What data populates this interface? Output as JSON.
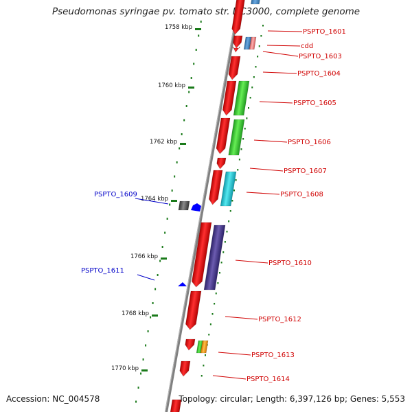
{
  "title": "Pseudomonas syringae pv. tomato str. DC3000, complete genome",
  "footer": {
    "accession": "Accession: NC_004578",
    "topology": "Topology: circular; Length: 6,397,126 bp; Genes: 5,553"
  },
  "colors": {
    "forward_red": "#e80000",
    "label_red": "#d00000",
    "label_blue": "#0000c8",
    "tick_green": "#1a7a1a",
    "backbone_gray": "#808080",
    "cog_green": "#33cc33",
    "cog_cyan": "#22c8d8",
    "cog_purple": "#4b3c8c",
    "cog_gray": "#555555",
    "cog_orange": "#ff9900",
    "cog_pink": "#ee8080",
    "cog_lightblue": "#4aa8e0",
    "strand_blue": "#0000ff"
  },
  "scale": {
    "unit": "kbp",
    "ticks": [
      "1758 kbp",
      "1760 kbp",
      "1762 kbp",
      "1764 kbp",
      "1766 kbp",
      "1768 kbp",
      "1770 kbp"
    ]
  },
  "gene_labels": {
    "right": [
      "PSPTO_1601",
      "cdd",
      "PSPTO_1603",
      "PSPTO_1604",
      "PSPTO_1605",
      "PSPTO_1606",
      "PSPTO_1607",
      "PSPTO_1608",
      "PSPTO_1610",
      "PSPTO_1612",
      "PSPTO_1613",
      "PSPTO_1614"
    ],
    "left": [
      "PSPTO_1609",
      "PSPTO_1611"
    ]
  }
}
